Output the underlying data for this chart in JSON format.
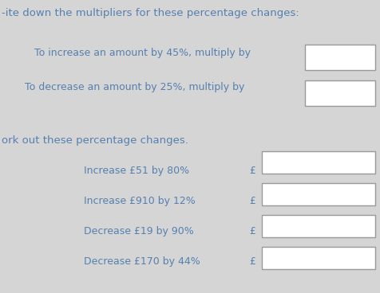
{
  "background_color": "#d5d5d5",
  "text_color": "#5580b0",
  "title_text": "-ite down the multipliers for these percentage changes:",
  "line1": "To increase an amount by 45%, multiply by",
  "line2": "To decrease an amount by 25%, multiply by",
  "section2_title": "ork out these percentage changes.",
  "row1": "Increase £51 by 80%",
  "row2": "Increase £910 by 12%",
  "row3": "Decrease £19 by 90%",
  "row4": "Decrease £170 by 44%",
  "pound_sign": "£",
  "font_size_title": 9.5,
  "font_size_body": 9.0,
  "font_size_section": 9.5
}
